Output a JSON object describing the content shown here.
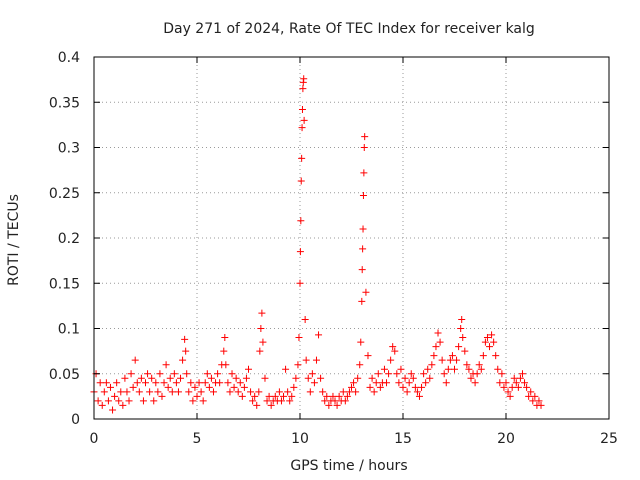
{
  "chart_data": {
    "type": "scatter",
    "title": "Day 271 of 2024, Rate Of TEC Index for receiver kalg",
    "xlabel": "GPS time / hours",
    "ylabel": "ROTI / TECUs",
    "xlim": [
      0,
      25
    ],
    "ylim": [
      0,
      0.4
    ],
    "xticks": [
      0,
      5,
      10,
      15,
      20,
      25
    ],
    "yticks": [
      0,
      0.05,
      0.1,
      0.15,
      0.2,
      0.25,
      0.3,
      0.35,
      0.4
    ],
    "xtick_labels": [
      "0",
      "5",
      "10",
      "15",
      "20",
      "25"
    ],
    "ytick_labels": [
      "0",
      "0.05",
      "0.1",
      "0.15",
      "0.2",
      "0.25",
      "0.3",
      "0.35",
      "0.4"
    ],
    "grid": true,
    "marker": "+",
    "marker_color": "#ff0000",
    "series": [
      {
        "name": "ROTI",
        "points": [
          [
            0.0,
            0.03
          ],
          [
            0.1,
            0.05
          ],
          [
            0.2,
            0.02
          ],
          [
            0.3,
            0.04
          ],
          [
            0.4,
            0.015
          ],
          [
            0.5,
            0.03
          ],
          [
            0.6,
            0.04
          ],
          [
            0.7,
            0.02
          ],
          [
            0.8,
            0.035
          ],
          [
            0.9,
            0.01
          ],
          [
            1.0,
            0.025
          ],
          [
            1.1,
            0.04
          ],
          [
            1.2,
            0.02
          ],
          [
            1.3,
            0.03
          ],
          [
            1.4,
            0.015
          ],
          [
            1.5,
            0.045
          ],
          [
            1.6,
            0.03
          ],
          [
            1.7,
            0.02
          ],
          [
            1.8,
            0.05
          ],
          [
            1.9,
            0.035
          ],
          [
            2.0,
            0.065
          ],
          [
            2.1,
            0.04
          ],
          [
            2.2,
            0.03
          ],
          [
            2.3,
            0.045
          ],
          [
            2.4,
            0.02
          ],
          [
            2.5,
            0.04
          ],
          [
            2.6,
            0.05
          ],
          [
            2.7,
            0.03
          ],
          [
            2.8,
            0.045
          ],
          [
            2.9,
            0.02
          ],
          [
            3.0,
            0.04
          ],
          [
            3.1,
            0.03
          ],
          [
            3.2,
            0.05
          ],
          [
            3.3,
            0.025
          ],
          [
            3.4,
            0.04
          ],
          [
            3.5,
            0.06
          ],
          [
            3.6,
            0.035
          ],
          [
            3.7,
            0.045
          ],
          [
            3.8,
            0.03
          ],
          [
            3.9,
            0.05
          ],
          [
            4.0,
            0.04
          ],
          [
            4.1,
            0.03
          ],
          [
            4.2,
            0.045
          ],
          [
            4.3,
            0.065
          ],
          [
            4.4,
            0.088
          ],
          [
            4.45,
            0.075
          ],
          [
            4.5,
            0.05
          ],
          [
            4.6,
            0.03
          ],
          [
            4.7,
            0.04
          ],
          [
            4.8,
            0.02
          ],
          [
            4.9,
            0.035
          ],
          [
            5.0,
            0.025
          ],
          [
            5.1,
            0.04
          ],
          [
            5.2,
            0.03
          ],
          [
            5.3,
            0.02
          ],
          [
            5.4,
            0.04
          ],
          [
            5.5,
            0.05
          ],
          [
            5.6,
            0.035
          ],
          [
            5.7,
            0.045
          ],
          [
            5.8,
            0.03
          ],
          [
            5.9,
            0.04
          ],
          [
            6.0,
            0.05
          ],
          [
            6.1,
            0.04
          ],
          [
            6.2,
            0.06
          ],
          [
            6.3,
            0.075
          ],
          [
            6.35,
            0.09
          ],
          [
            6.4,
            0.06
          ],
          [
            6.5,
            0.04
          ],
          [
            6.6,
            0.03
          ],
          [
            6.7,
            0.05
          ],
          [
            6.8,
            0.035
          ],
          [
            6.9,
            0.045
          ],
          [
            7.0,
            0.03
          ],
          [
            7.1,
            0.04
          ],
          [
            7.2,
            0.025
          ],
          [
            7.3,
            0.035
          ],
          [
            7.4,
            0.045
          ],
          [
            7.5,
            0.055
          ],
          [
            7.6,
            0.03
          ],
          [
            7.7,
            0.02
          ],
          [
            7.8,
            0.025
          ],
          [
            7.9,
            0.015
          ],
          [
            8.0,
            0.03
          ],
          [
            8.05,
            0.075
          ],
          [
            8.1,
            0.1
          ],
          [
            8.15,
            0.117
          ],
          [
            8.2,
            0.085
          ],
          [
            8.3,
            0.045
          ],
          [
            8.4,
            0.02
          ],
          [
            8.5,
            0.025
          ],
          [
            8.6,
            0.015
          ],
          [
            8.7,
            0.02
          ],
          [
            8.8,
            0.025
          ],
          [
            8.9,
            0.02
          ],
          [
            9.0,
            0.03
          ],
          [
            9.1,
            0.02
          ],
          [
            9.2,
            0.025
          ],
          [
            9.3,
            0.055
          ],
          [
            9.4,
            0.03
          ],
          [
            9.5,
            0.02
          ],
          [
            9.6,
            0.025
          ],
          [
            9.7,
            0.035
          ],
          [
            9.8,
            0.045
          ],
          [
            9.9,
            0.06
          ],
          [
            9.95,
            0.09
          ],
          [
            10.0,
            0.15
          ],
          [
            10.02,
            0.185
          ],
          [
            10.04,
            0.219
          ],
          [
            10.06,
            0.263
          ],
          [
            10.08,
            0.288
          ],
          [
            10.1,
            0.322
          ],
          [
            10.12,
            0.342
          ],
          [
            10.14,
            0.365
          ],
          [
            10.16,
            0.372
          ],
          [
            10.18,
            0.376
          ],
          [
            10.2,
            0.33
          ],
          [
            10.25,
            0.11
          ],
          [
            10.3,
            0.065
          ],
          [
            10.4,
            0.045
          ],
          [
            10.5,
            0.03
          ],
          [
            10.6,
            0.05
          ],
          [
            10.7,
            0.04
          ],
          [
            10.8,
            0.065
          ],
          [
            10.9,
            0.093
          ],
          [
            11.0,
            0.045
          ],
          [
            11.1,
            0.03
          ],
          [
            11.2,
            0.02
          ],
          [
            11.3,
            0.025
          ],
          [
            11.4,
            0.015
          ],
          [
            11.5,
            0.02
          ],
          [
            11.6,
            0.025
          ],
          [
            11.7,
            0.02
          ],
          [
            11.8,
            0.015
          ],
          [
            11.9,
            0.025
          ],
          [
            12.0,
            0.02
          ],
          [
            12.1,
            0.03
          ],
          [
            12.2,
            0.02
          ],
          [
            12.3,
            0.025
          ],
          [
            12.4,
            0.03
          ],
          [
            12.5,
            0.035
          ],
          [
            12.6,
            0.04
          ],
          [
            12.7,
            0.03
          ],
          [
            12.8,
            0.045
          ],
          [
            12.9,
            0.06
          ],
          [
            12.95,
            0.085
          ],
          [
            13.0,
            0.13
          ],
          [
            13.02,
            0.165
          ],
          [
            13.04,
            0.188
          ],
          [
            13.06,
            0.21
          ],
          [
            13.08,
            0.247
          ],
          [
            13.1,
            0.272
          ],
          [
            13.12,
            0.3
          ],
          [
            13.14,
            0.312
          ],
          [
            13.2,
            0.14
          ],
          [
            13.3,
            0.07
          ],
          [
            13.4,
            0.035
          ],
          [
            13.5,
            0.045
          ],
          [
            13.6,
            0.03
          ],
          [
            13.7,
            0.04
          ],
          [
            13.8,
            0.05
          ],
          [
            13.9,
            0.035
          ],
          [
            14.0,
            0.04
          ],
          [
            14.1,
            0.055
          ],
          [
            14.2,
            0.04
          ],
          [
            14.3,
            0.05
          ],
          [
            14.4,
            0.065
          ],
          [
            14.5,
            0.08
          ],
          [
            14.6,
            0.075
          ],
          [
            14.7,
            0.05
          ],
          [
            14.8,
            0.04
          ],
          [
            14.9,
            0.055
          ],
          [
            15.0,
            0.035
          ],
          [
            15.1,
            0.045
          ],
          [
            15.2,
            0.03
          ],
          [
            15.3,
            0.04
          ],
          [
            15.4,
            0.05
          ],
          [
            15.5,
            0.045
          ],
          [
            15.6,
            0.035
          ],
          [
            15.7,
            0.03
          ],
          [
            15.8,
            0.025
          ],
          [
            15.9,
            0.035
          ],
          [
            16.0,
            0.05
          ],
          [
            16.1,
            0.04
          ],
          [
            16.2,
            0.055
          ],
          [
            16.3,
            0.045
          ],
          [
            16.4,
            0.06
          ],
          [
            16.5,
            0.07
          ],
          [
            16.6,
            0.08
          ],
          [
            16.7,
            0.095
          ],
          [
            16.8,
            0.085
          ],
          [
            16.9,
            0.065
          ],
          [
            17.0,
            0.05
          ],
          [
            17.1,
            0.04
          ],
          [
            17.2,
            0.055
          ],
          [
            17.3,
            0.065
          ],
          [
            17.4,
            0.07
          ],
          [
            17.5,
            0.055
          ],
          [
            17.6,
            0.065
          ],
          [
            17.7,
            0.08
          ],
          [
            17.8,
            0.1
          ],
          [
            17.85,
            0.11
          ],
          [
            17.9,
            0.09
          ],
          [
            18.0,
            0.075
          ],
          [
            18.1,
            0.06
          ],
          [
            18.2,
            0.055
          ],
          [
            18.3,
            0.045
          ],
          [
            18.4,
            0.05
          ],
          [
            18.5,
            0.04
          ],
          [
            18.6,
            0.05
          ],
          [
            18.7,
            0.06
          ],
          [
            18.8,
            0.055
          ],
          [
            18.9,
            0.07
          ],
          [
            19.0,
            0.085
          ],
          [
            19.1,
            0.09
          ],
          [
            19.2,
            0.08
          ],
          [
            19.3,
            0.093
          ],
          [
            19.4,
            0.085
          ],
          [
            19.5,
            0.07
          ],
          [
            19.6,
            0.055
          ],
          [
            19.7,
            0.04
          ],
          [
            19.8,
            0.05
          ],
          [
            19.9,
            0.035
          ],
          [
            20.0,
            0.04
          ],
          [
            20.1,
            0.03
          ],
          [
            20.2,
            0.025
          ],
          [
            20.3,
            0.035
          ],
          [
            20.4,
            0.045
          ],
          [
            20.5,
            0.04
          ],
          [
            20.6,
            0.035
          ],
          [
            20.7,
            0.045
          ],
          [
            20.8,
            0.05
          ],
          [
            20.9,
            0.04
          ],
          [
            21.0,
            0.035
          ],
          [
            21.1,
            0.025
          ],
          [
            21.2,
            0.03
          ],
          [
            21.3,
            0.02
          ],
          [
            21.4,
            0.025
          ],
          [
            21.5,
            0.015
          ],
          [
            21.6,
            0.02
          ],
          [
            21.7,
            0.015
          ]
        ]
      }
    ]
  }
}
